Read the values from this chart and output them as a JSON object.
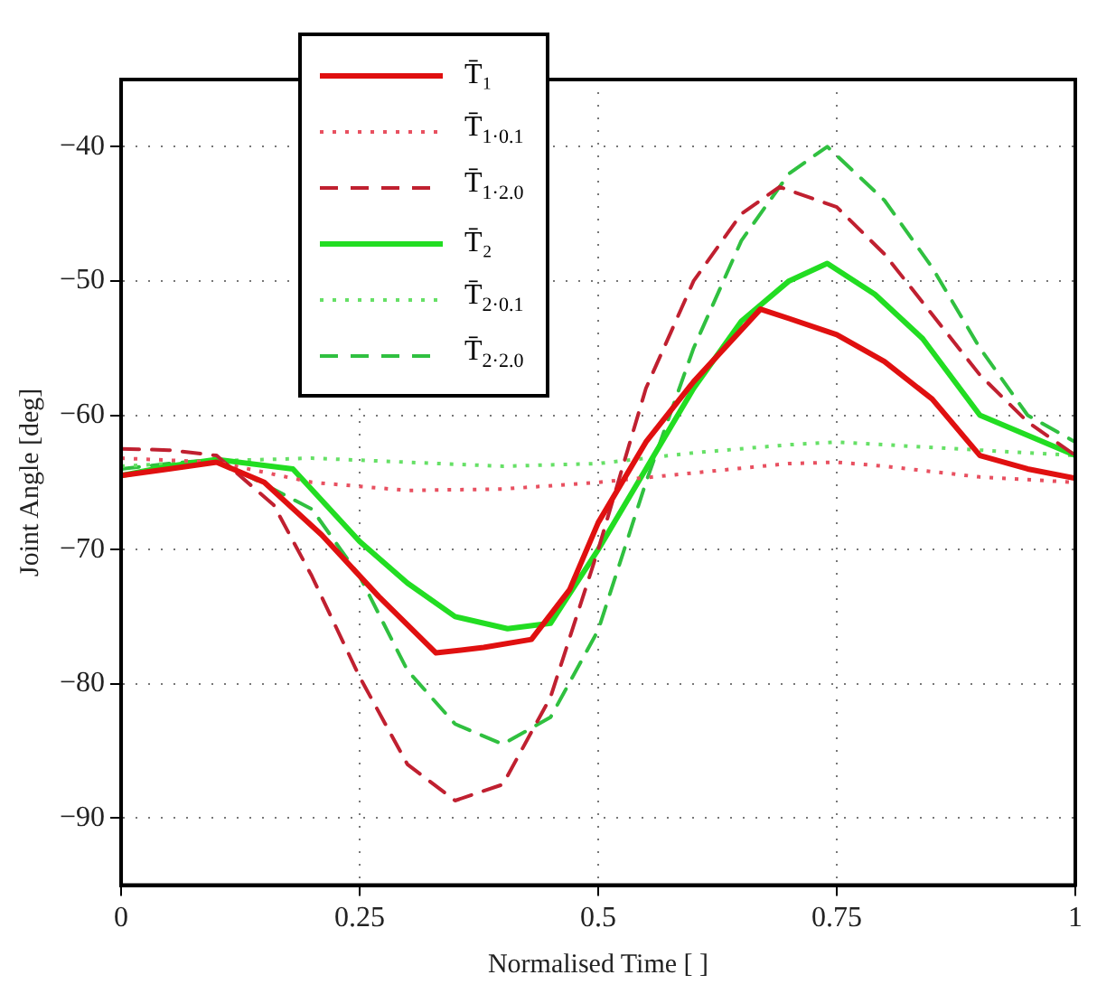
{
  "chart_data": {
    "type": "line",
    "xlabel": "Normalised Time [ ]",
    "ylabel": "Joint Angle [deg]",
    "xlim": [
      0,
      1
    ],
    "xticks": [
      0,
      0.25,
      0.5,
      0.75,
      1
    ],
    "ylim": [
      -95,
      -35
    ],
    "yticks": [
      -90,
      -80,
      -70,
      -60,
      -50,
      -40
    ],
    "grid": true,
    "legend": "top left",
    "marker": "none",
    "series": [
      {
        "name": "T̄₁",
        "color": "#e01010",
        "line_style": "solid",
        "x": [
          0,
          0.05,
          0.1,
          0.15,
          0.21,
          0.27,
          0.33,
          0.38,
          0.43,
          0.47,
          0.5,
          0.55,
          0.6,
          0.67,
          0.7,
          0.75,
          0.8,
          0.85,
          0.9,
          0.95,
          1
        ],
        "values": [
          -64.5,
          -64,
          -63.5,
          -65,
          -68.9,
          -73.5,
          -77.7,
          -77.3,
          -76.7,
          -73,
          -68,
          -62,
          -57.5,
          -52.1,
          -52.8,
          -54,
          -56,
          -58.8,
          -63,
          -64,
          -64.7
        ]
      },
      {
        "name": "T̄$_{1·0.1}$",
        "color": "#e85060",
        "line_style": "dotted",
        "x": [
          0,
          0.1,
          0.2,
          0.3,
          0.4,
          0.5,
          0.6,
          0.7,
          0.75,
          0.8,
          0.9,
          1
        ],
        "values": [
          -63.2,
          -63.5,
          -65,
          -65.6,
          -65.5,
          -65,
          -64.3,
          -63.6,
          -63.5,
          -63.8,
          -64.6,
          -65
        ]
      },
      {
        "name": "T̄$_{1·2.0}$",
        "color": "#c02030",
        "line_style": "dashed",
        "x": [
          0,
          0.05,
          0.1,
          0.16,
          0.2,
          0.25,
          0.3,
          0.35,
          0.4,
          0.45,
          0.5,
          0.55,
          0.6,
          0.65,
          0.69,
          0.75,
          0.8,
          0.85,
          0.9,
          0.95,
          1
        ],
        "values": [
          -62.5,
          -62.6,
          -63,
          -66.7,
          -72,
          -79.5,
          -86,
          -88.7,
          -87.5,
          -81,
          -70,
          -58,
          -50,
          -45,
          -43,
          -44.5,
          -48,
          -52.5,
          -57,
          -60.5,
          -63
        ]
      },
      {
        "name": "T̄₂",
        "color": "#22dd22",
        "line_style": "solid",
        "x": [
          0,
          0.05,
          0.1,
          0.18,
          0.25,
          0.3,
          0.35,
          0.405,
          0.45,
          0.5,
          0.55,
          0.6,
          0.65,
          0.7,
          0.74,
          0.79,
          0.84,
          0.9,
          0.95,
          1
        ],
        "values": [
          -64.5,
          -63.8,
          -63.3,
          -64,
          -69.4,
          -72.5,
          -75,
          -75.9,
          -75.5,
          -70,
          -64,
          -58,
          -53,
          -50,
          -48.7,
          -51,
          -54.3,
          -60,
          -61.5,
          -63
        ]
      },
      {
        "name": "T̄$_{2·0.1}$",
        "color": "#66e066",
        "line_style": "dotted",
        "x": [
          0,
          0.1,
          0.2,
          0.3,
          0.4,
          0.5,
          0.6,
          0.7,
          0.75,
          0.8,
          0.9,
          1
        ],
        "values": [
          -63.8,
          -63.4,
          -63.2,
          -63.5,
          -63.8,
          -63.6,
          -62.8,
          -62.2,
          -62,
          -62.2,
          -62.6,
          -63
        ]
      },
      {
        "name": "T̄$_{2·2.0}$",
        "color": "#30c040",
        "line_style": "dashed",
        "x": [
          0,
          0.05,
          0.1,
          0.2,
          0.25,
          0.3,
          0.35,
          0.4,
          0.45,
          0.5,
          0.55,
          0.6,
          0.65,
          0.7,
          0.74,
          0.8,
          0.85,
          0.9,
          0.95,
          1
        ],
        "values": [
          -64,
          -63.6,
          -63.3,
          -67,
          -72,
          -79,
          -83,
          -84.5,
          -82.5,
          -76,
          -65,
          -55,
          -47,
          -42,
          -40,
          -44,
          -49,
          -55,
          -60,
          -62
        ]
      }
    ]
  }
}
